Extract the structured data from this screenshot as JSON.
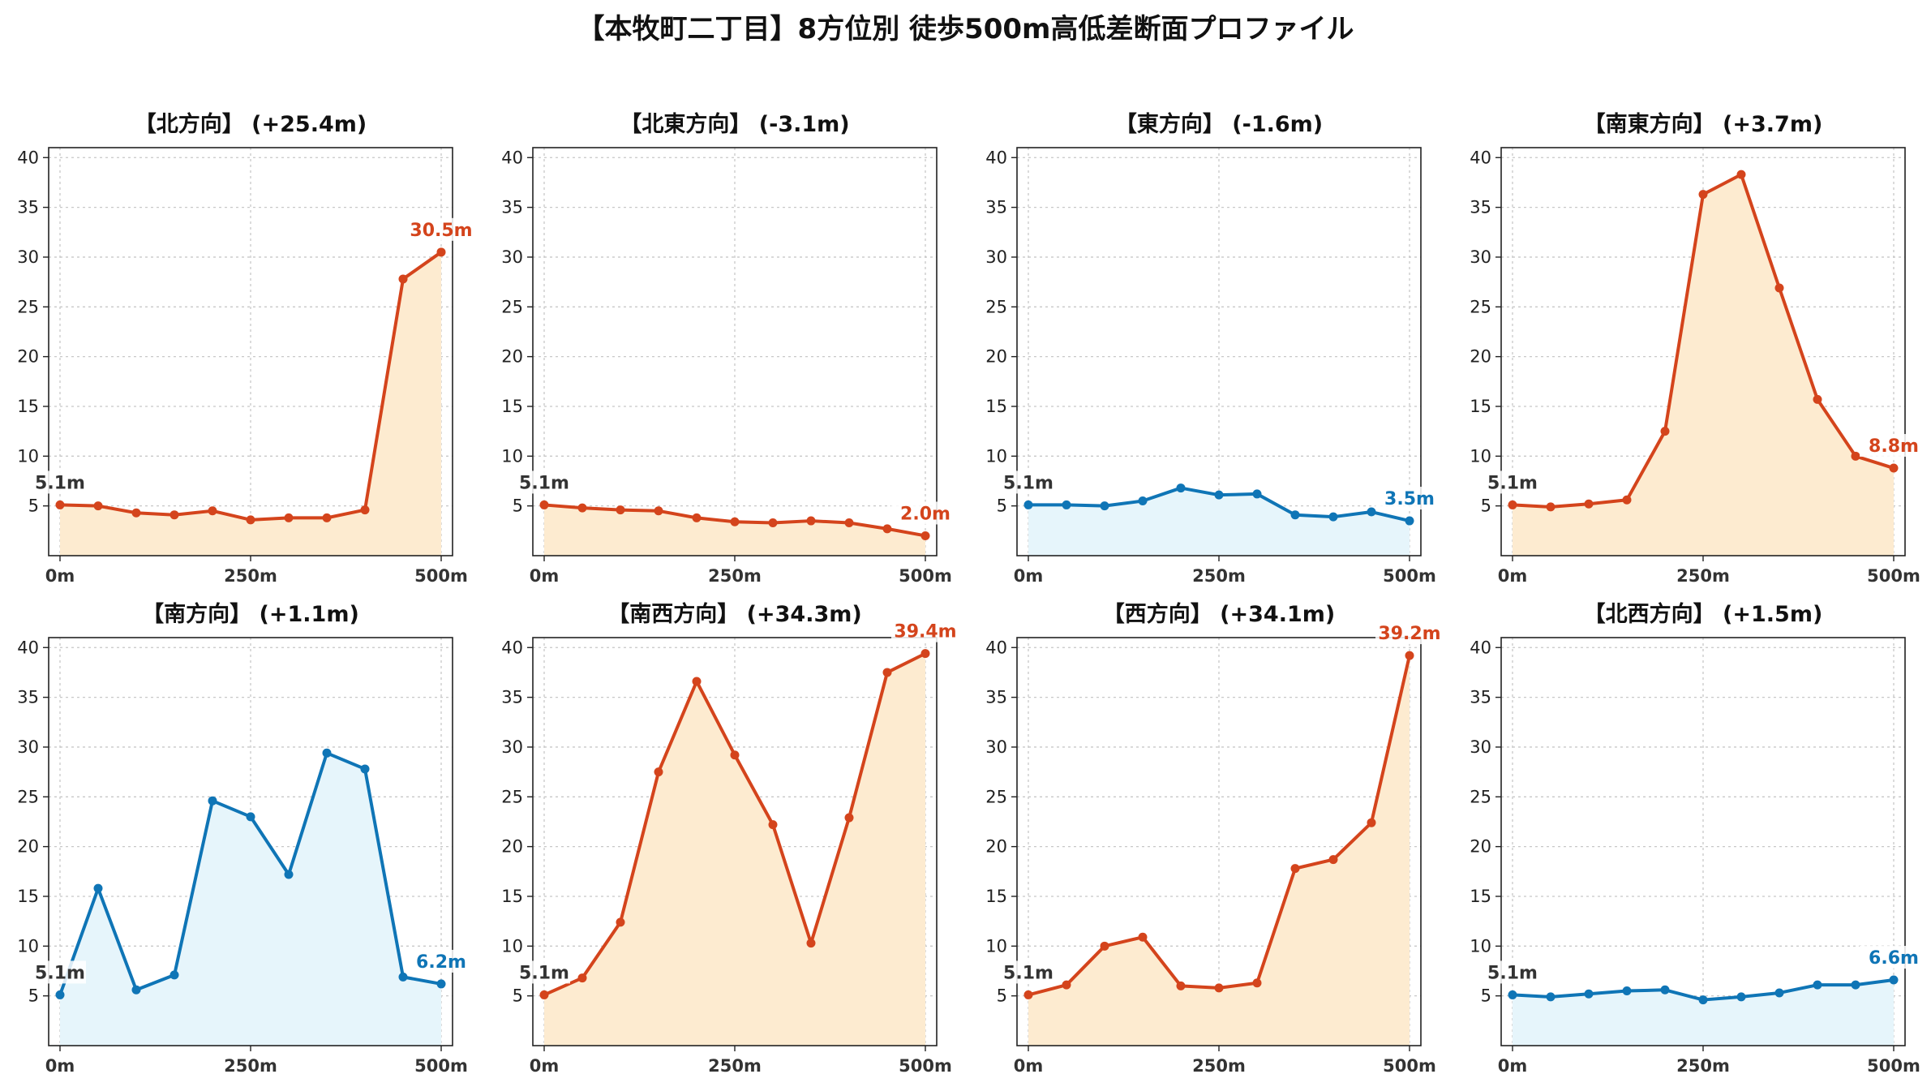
{
  "title": "【本牧町二丁目】8方位別 徒歩500m高低差断面プロファイル",
  "colors": {
    "up_line": "#d4441c",
    "up_fill": "#fdebd0",
    "down_line": "#0f75b6",
    "down_fill": "#e6f5fb",
    "grid": "#c8c8c8"
  },
  "chart_data": [
    {
      "type": "line",
      "title": "【北方向】 (+25.4m)",
      "trend": "up",
      "x": [
        0,
        50,
        100,
        150,
        200,
        250,
        300,
        350,
        400,
        450,
        500
      ],
      "values": [
        5.1,
        5.0,
        4.3,
        4.1,
        4.5,
        3.6,
        3.8,
        3.8,
        4.6,
        27.8,
        30.5
      ],
      "start_label": "5.1m",
      "end_label": "30.5m",
      "xticks": [
        "0m",
        "250m",
        "500m"
      ],
      "yticks": [
        5,
        10,
        15,
        20,
        25,
        30,
        35,
        40
      ],
      "xlim": [
        0,
        500
      ],
      "ylim": [
        0,
        41
      ],
      "grid": true
    },
    {
      "type": "line",
      "title": "【北東方向】 (-3.1m)",
      "trend": "up",
      "x": [
        0,
        50,
        100,
        150,
        200,
        250,
        300,
        350,
        400,
        450,
        500
      ],
      "values": [
        5.1,
        4.8,
        4.6,
        4.5,
        3.8,
        3.4,
        3.3,
        3.5,
        3.3,
        2.7,
        2.0
      ],
      "start_label": "5.1m",
      "end_label": "2.0m",
      "xticks": [
        "0m",
        "250m",
        "500m"
      ],
      "yticks": [
        5,
        10,
        15,
        20,
        25,
        30,
        35,
        40
      ],
      "xlim": [
        0,
        500
      ],
      "ylim": [
        0,
        41
      ],
      "grid": true
    },
    {
      "type": "line",
      "title": "【東方向】 (-1.6m)",
      "trend": "down",
      "x": [
        0,
        50,
        100,
        150,
        200,
        250,
        300,
        350,
        400,
        450,
        500
      ],
      "values": [
        5.1,
        5.1,
        5.0,
        5.5,
        6.8,
        6.1,
        6.2,
        4.1,
        3.9,
        4.4,
        3.5
      ],
      "start_label": "5.1m",
      "end_label": "3.5m",
      "xticks": [
        "0m",
        "250m",
        "500m"
      ],
      "yticks": [
        5,
        10,
        15,
        20,
        25,
        30,
        35,
        40
      ],
      "xlim": [
        0,
        500
      ],
      "ylim": [
        0,
        41
      ],
      "grid": true
    },
    {
      "type": "line",
      "title": "【南東方向】 (+3.7m)",
      "trend": "up",
      "x": [
        0,
        50,
        100,
        150,
        200,
        250,
        300,
        350,
        400,
        450,
        500
      ],
      "values": [
        5.1,
        4.9,
        5.2,
        5.6,
        12.5,
        36.3,
        38.3,
        26.9,
        15.7,
        10.0,
        8.8
      ],
      "start_label": "5.1m",
      "end_label": "8.8m",
      "xticks": [
        "0m",
        "250m",
        "500m"
      ],
      "yticks": [
        5,
        10,
        15,
        20,
        25,
        30,
        35,
        40
      ],
      "xlim": [
        0,
        500
      ],
      "ylim": [
        0,
        41
      ],
      "grid": true
    },
    {
      "type": "line",
      "title": "【南方向】 (+1.1m)",
      "trend": "down",
      "x": [
        0,
        50,
        100,
        150,
        200,
        250,
        300,
        350,
        400,
        450,
        500
      ],
      "values": [
        5.1,
        15.8,
        5.6,
        7.1,
        24.6,
        23.0,
        17.2,
        29.4,
        27.8,
        6.9,
        6.2
      ],
      "start_label": "5.1m",
      "end_label": "6.2m",
      "xticks": [
        "0m",
        "250m",
        "500m"
      ],
      "yticks": [
        5,
        10,
        15,
        20,
        25,
        30,
        35,
        40
      ],
      "xlim": [
        0,
        500
      ],
      "ylim": [
        0,
        41
      ],
      "grid": true
    },
    {
      "type": "line",
      "title": "【南西方向】 (+34.3m)",
      "trend": "up",
      "x": [
        0,
        50,
        100,
        150,
        200,
        250,
        300,
        350,
        400,
        450,
        500
      ],
      "values": [
        5.1,
        6.8,
        12.4,
        27.5,
        36.6,
        29.2,
        22.2,
        10.3,
        22.9,
        37.5,
        39.4
      ],
      "start_label": "5.1m",
      "end_label": "39.4m",
      "xticks": [
        "0m",
        "250m",
        "500m"
      ],
      "yticks": [
        5,
        10,
        15,
        20,
        25,
        30,
        35,
        40
      ],
      "xlim": [
        0,
        500
      ],
      "ylim": [
        0,
        41
      ],
      "grid": true
    },
    {
      "type": "line",
      "title": "【西方向】 (+34.1m)",
      "trend": "up",
      "x": [
        0,
        50,
        100,
        150,
        200,
        250,
        300,
        350,
        400,
        450,
        500
      ],
      "values": [
        5.1,
        6.1,
        10.0,
        10.9,
        6.0,
        5.8,
        6.3,
        17.8,
        18.7,
        22.4,
        39.2
      ],
      "start_label": "5.1m",
      "end_label": "39.2m",
      "xticks": [
        "0m",
        "250m",
        "500m"
      ],
      "yticks": [
        5,
        10,
        15,
        20,
        25,
        30,
        35,
        40
      ],
      "xlim": [
        0,
        500
      ],
      "ylim": [
        0,
        41
      ],
      "grid": true
    },
    {
      "type": "line",
      "title": "【北西方向】 (+1.5m)",
      "trend": "down",
      "x": [
        0,
        50,
        100,
        150,
        200,
        250,
        300,
        350,
        400,
        450,
        500
      ],
      "values": [
        5.1,
        4.9,
        5.2,
        5.5,
        5.6,
        4.6,
        4.9,
        5.3,
        6.1,
        6.1,
        6.6
      ],
      "start_label": "5.1m",
      "end_label": "6.6m",
      "xticks": [
        "0m",
        "250m",
        "500m"
      ],
      "yticks": [
        5,
        10,
        15,
        20,
        25,
        30,
        35,
        40
      ],
      "xlim": [
        0,
        500
      ],
      "ylim": [
        0,
        41
      ],
      "grid": true
    }
  ]
}
